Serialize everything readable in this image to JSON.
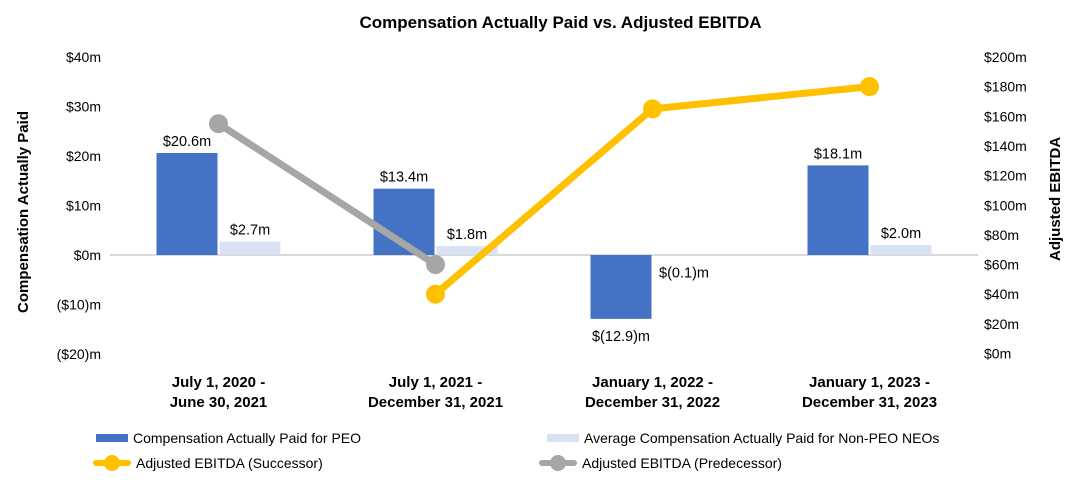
{
  "title": "Compensation Actually Paid vs. Adjusted EBITDA",
  "chart_data": {
    "type": "bar+line combo",
    "categories": [
      "July 1, 2020 -\nJune 30, 2021",
      "July 1, 2021 -\nDecember 31, 2021",
      "January 1, 2022 -\nDecember 31, 2022",
      "January 1, 2023 -\nDecember 31, 2023"
    ],
    "bar_series": [
      {
        "name": "Compensation Actually Paid for PEO",
        "axis": "left",
        "color": "#4472C4",
        "values": [
          20.6,
          13.4,
          -12.9,
          18.1
        ],
        "labels": [
          "$20.6m",
          "$13.4m",
          "$(12.9)m",
          "$18.1m"
        ]
      },
      {
        "name": "Average Compensation Actually Paid for Non-PEO NEOs",
        "axis": "left",
        "color": "#D9E2F3",
        "values": [
          2.7,
          1.8,
          -0.1,
          2.0
        ],
        "labels": [
          "$2.7m",
          "$1.8m",
          "$(0.1)m",
          "$2.0m"
        ]
      }
    ],
    "line_series": [
      {
        "name": "Adjusted EBITDA (Predecessor)",
        "axis": "right",
        "color": "#A6A6A6",
        "values": [
          155,
          60,
          null,
          null
        ]
      },
      {
        "name": "Adjusted EBITDA (Successor)",
        "axis": "right",
        "color": "#FFC000",
        "values": [
          null,
          40,
          165,
          180
        ]
      }
    ],
    "left_axis": {
      "title": "Compensation Actually Paid",
      "ticks": [
        "$40m",
        "$30m",
        "$20m",
        "$10m",
        "$0m",
        "($10)m",
        "($20)m"
      ],
      "tick_values": [
        40,
        30,
        20,
        10,
        0,
        -10,
        -20
      ],
      "range": [
        -20,
        40
      ]
    },
    "right_axis": {
      "title": "Adjusted EBITDA",
      "ticks": [
        "$200m",
        "$180m",
        "$160m",
        "$140m",
        "$120m",
        "$100m",
        "$80m",
        "$60m",
        "$40m",
        "$20m",
        "$0m"
      ],
      "tick_values": [
        200,
        180,
        160,
        140,
        120,
        100,
        80,
        60,
        40,
        20,
        0
      ],
      "range": [
        0,
        200
      ]
    },
    "gridline_color": "#D9D9D9",
    "legend": {
      "position": "bottom",
      "items": [
        {
          "label": "Compensation Actually Paid for PEO",
          "marker": "bar",
          "color": "#4472C4"
        },
        {
          "label": "Average Compensation Actually Paid for Non-PEO NEOs",
          "marker": "bar",
          "color": "#D9E2F3"
        },
        {
          "label": "Adjusted EBITDA (Successor)",
          "marker": "line",
          "color": "#FFC000"
        },
        {
          "label": "Adjusted EBITDA (Predecessor)",
          "marker": "line",
          "color": "#A6A6A6"
        }
      ]
    }
  }
}
